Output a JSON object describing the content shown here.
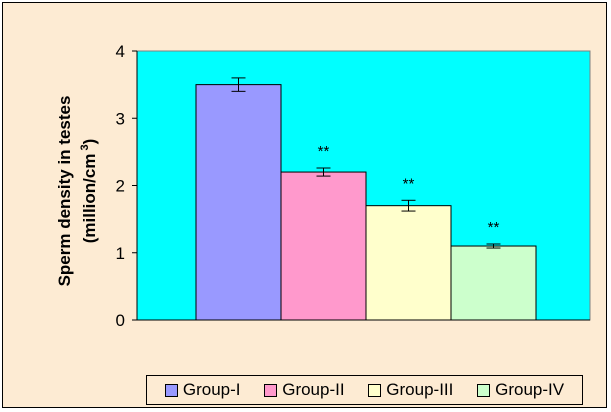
{
  "chart_data": {
    "type": "bar",
    "categories": [
      "Group-I",
      "Group-II",
      "Group-III",
      "Group-IV"
    ],
    "values": [
      3.5,
      2.2,
      1.7,
      1.1
    ],
    "errors": [
      0.1,
      0.06,
      0.08,
      0.03
    ],
    "annotations": [
      "",
      "**",
      "**",
      "**"
    ],
    "ylabel_line1": "Sperm density in testes",
    "ylabel_line2": "(million/cm",
    "ylabel_sup": "3",
    "ylabel_close": ")",
    "ylim": [
      0,
      4
    ],
    "yticks": [
      "0",
      "1",
      "2",
      "3",
      "4"
    ],
    "grid": false,
    "legend_position": "bottom",
    "colors": [
      "#9999FF",
      "#FF99CC",
      "#FFFFCC",
      "#CCFFCC"
    ],
    "plot_background": "#00FFFF",
    "chart_background": "#FDEBD3"
  }
}
